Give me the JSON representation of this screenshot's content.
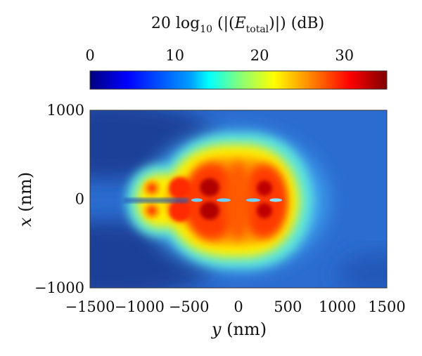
{
  "chart_data": {
    "type": "heatmap",
    "colorbar": {
      "title": "20 log₁₀ (|(E_total)|) (dB)",
      "title_parts": [
        "20 log",
        "10",
        " (|(",
        "E",
        "total",
        ")|) (dB)"
      ],
      "range": [
        0,
        35
      ],
      "ticks": [
        0,
        10,
        20,
        30
      ],
      "tick_labels": [
        "0",
        "10",
        "20",
        "30"
      ],
      "colormap": "jet",
      "colors": [
        "#00007f",
        "#0000ff",
        "#007fff",
        "#00ffff",
        "#7fff7f",
        "#ffff00",
        "#ff7f00",
        "#ff0000",
        "#7f0000"
      ]
    },
    "xaxis": {
      "label_var": "y",
      "label_unit": " (nm)",
      "range": [
        -1500,
        1500
      ],
      "ticks": [
        -1500,
        -1000,
        -500,
        0,
        500,
        1000,
        1500
      ],
      "tick_labels": [
        "−1500",
        "−1000",
        "−500",
        "0",
        "500",
        "1000",
        "1500"
      ]
    },
    "yaxis": {
      "label_var": "x",
      "label_unit": " (nm)",
      "range": [
        -1000,
        1000
      ],
      "ticks": [
        1000,
        0,
        -1000
      ],
      "tick_labels": [
        "1000",
        "0",
        "−1000"
      ]
    },
    "field_hotspots": [
      {
        "y": -1000,
        "x": 160,
        "db": 30
      },
      {
        "y": -1000,
        "x": -160,
        "db": 30
      },
      {
        "y": -680,
        "x": 180,
        "db": 32
      },
      {
        "y": -680,
        "x": -180,
        "db": 32
      },
      {
        "y": -360,
        "x": 220,
        "db": 35
      },
      {
        "y": -360,
        "x": -220,
        "db": 35
      },
      {
        "y": 300,
        "x": 220,
        "db": 34
      },
      {
        "y": 300,
        "x": -220,
        "db": 34
      }
    ]
  }
}
